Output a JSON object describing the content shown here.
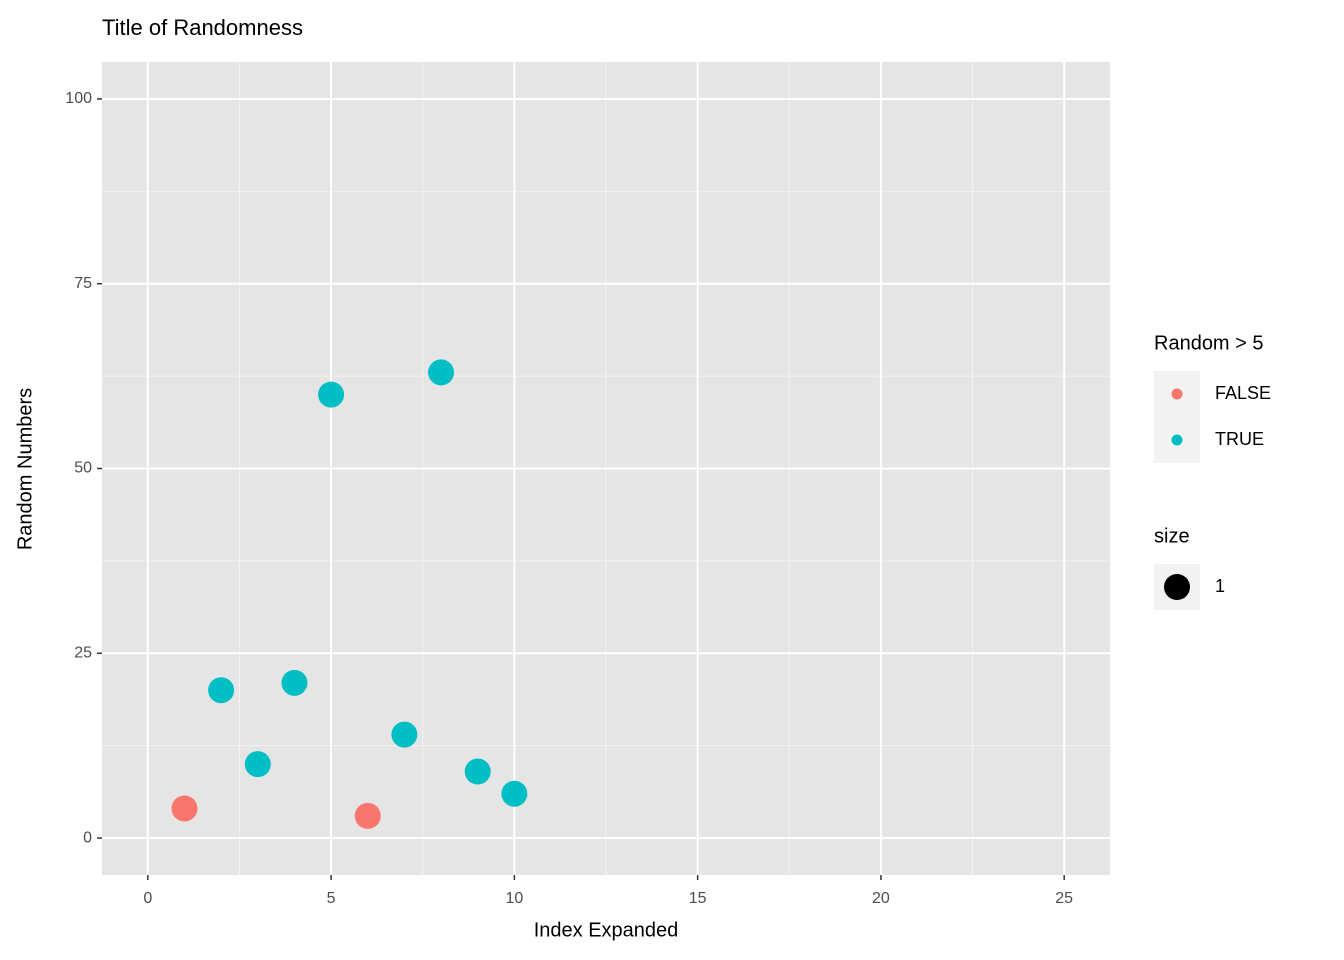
{
  "chart_data": {
    "type": "scatter",
    "title": "Title of Randomness",
    "x_label": "Index Expanded",
    "y_label": "Random Numbers",
    "xlim": [
      -1.25,
      26.25
    ],
    "ylim": [
      -5,
      105
    ],
    "xticks": [
      0,
      5,
      10,
      15,
      20,
      25
    ],
    "yticks": [
      0,
      25,
      50,
      75,
      100
    ],
    "grid": true,
    "legend_position": "right",
    "legend_title": "Random > 5",
    "series": [
      {
        "name": "FALSE",
        "color": "#F8766D",
        "x": [
          1,
          6
        ],
        "values": [
          4,
          3
        ]
      },
      {
        "name": "TRUE",
        "color": "#00BFC4",
        "x": [
          2,
          3,
          4,
          5,
          7,
          8,
          9,
          10
        ],
        "values": [
          20,
          10,
          21,
          60,
          14,
          63,
          9,
          6
        ]
      }
    ],
    "size_legend": {
      "title": "size",
      "labels": [
        "1"
      ]
    }
  }
}
